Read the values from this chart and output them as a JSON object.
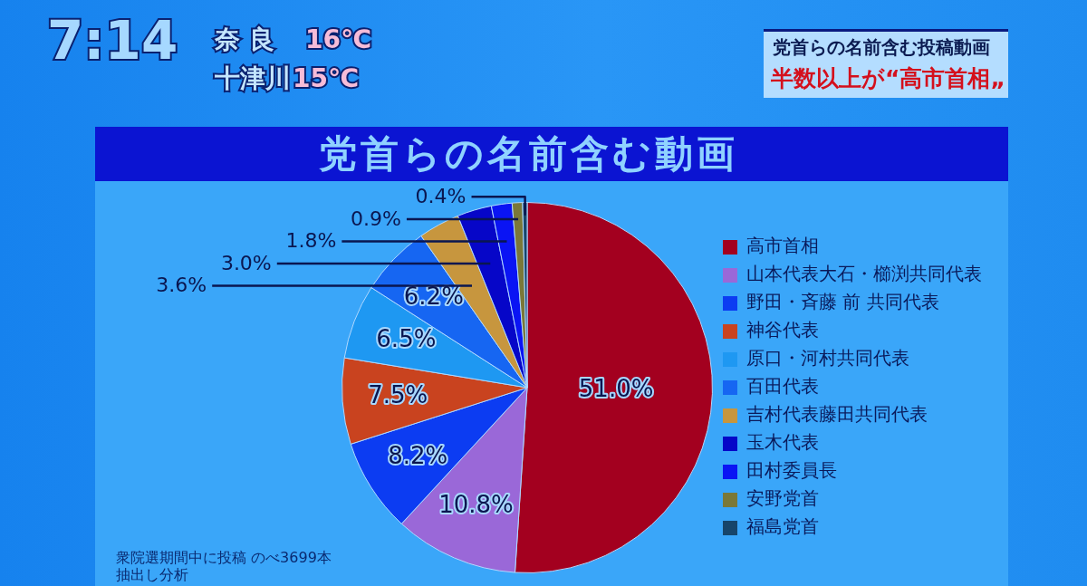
{
  "chart_data": {
    "type": "pie",
    "title": "党首らの名前含む動画",
    "categories": [
      "高市首相",
      "山本代表大石・櫛渕共同代表",
      "野田・斉藤 前 共同代表",
      "神谷代表",
      "原口・河村共同代表",
      "百田代表",
      "吉村代表藤田共同代表",
      "玉木代表",
      "田村委員長",
      "安野党首",
      "福島党首"
    ],
    "values": [
      51.0,
      10.8,
      8.2,
      7.5,
      6.5,
      6.2,
      3.6,
      3.0,
      1.8,
      0.9,
      0.4
    ],
    "colors": [
      "#a3001f",
      "#9a68d8",
      "#0c3cf2",
      "#c9431f",
      "#1e98f2",
      "#1666f2",
      "#c7963e",
      "#0606c8",
      "#0a14f4",
      "#7a7838",
      "#17456a"
    ],
    "value_labels": [
      "51.0%",
      "10.8%",
      "8.2%",
      "7.5%",
      "6.5%",
      "6.2%",
      "3.6%",
      "3.0%",
      "1.8%",
      "0.9%",
      "0.4%"
    ],
    "legend": "right",
    "annotations": [
      "7:14",
      "奈良",
      "16℃",
      "十津川",
      "15℃",
      "党首らの名前含む投稿動画",
      "半数以上が“高市首相„",
      "衆院選期間中に投稿 のべ3699本",
      "抽出し分析"
    ]
  }
}
